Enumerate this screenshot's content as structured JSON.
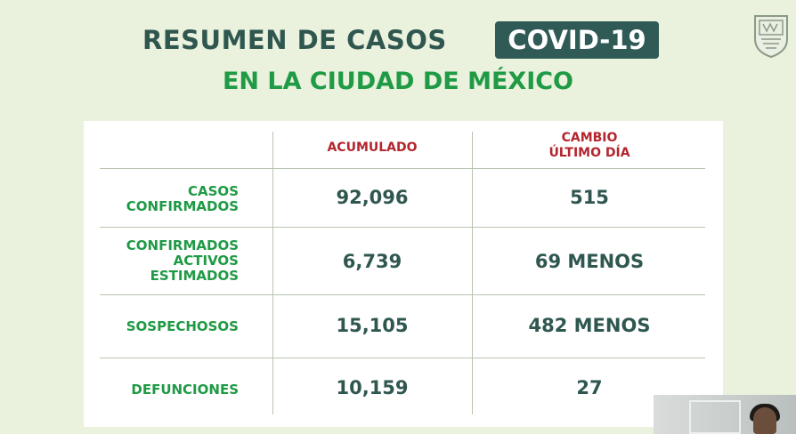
{
  "header": {
    "title": "RESUMEN DE CASOS",
    "badge": "COVID-19",
    "subtitle": "EN LA CIUDAD DE MÉXICO"
  },
  "logo": {
    "icon": "cdmx-shield-icon"
  },
  "table": {
    "columns": [
      "ACUMULADO",
      "CAMBIO\nÚLTIMO DÍA"
    ],
    "rows": [
      {
        "label": "CASOS\nCONFIRMADOS",
        "accumulated": "92,096",
        "change": "515"
      },
      {
        "label": "CONFIRMADOS\nACTIVOS\nESTIMADOS",
        "accumulated": "6,739",
        "change": "69 MENOS"
      },
      {
        "label": "SOSPECHOSOS",
        "accumulated": "15,105",
        "change": "482 MENOS"
      },
      {
        "label": "DEFUNCIONES",
        "accumulated": "10,159",
        "change": "27"
      }
    ]
  },
  "colors": {
    "dark_teal": "#2f5750",
    "green": "#1f9a45",
    "red": "#b3262e",
    "background": "#eaf1dd"
  }
}
